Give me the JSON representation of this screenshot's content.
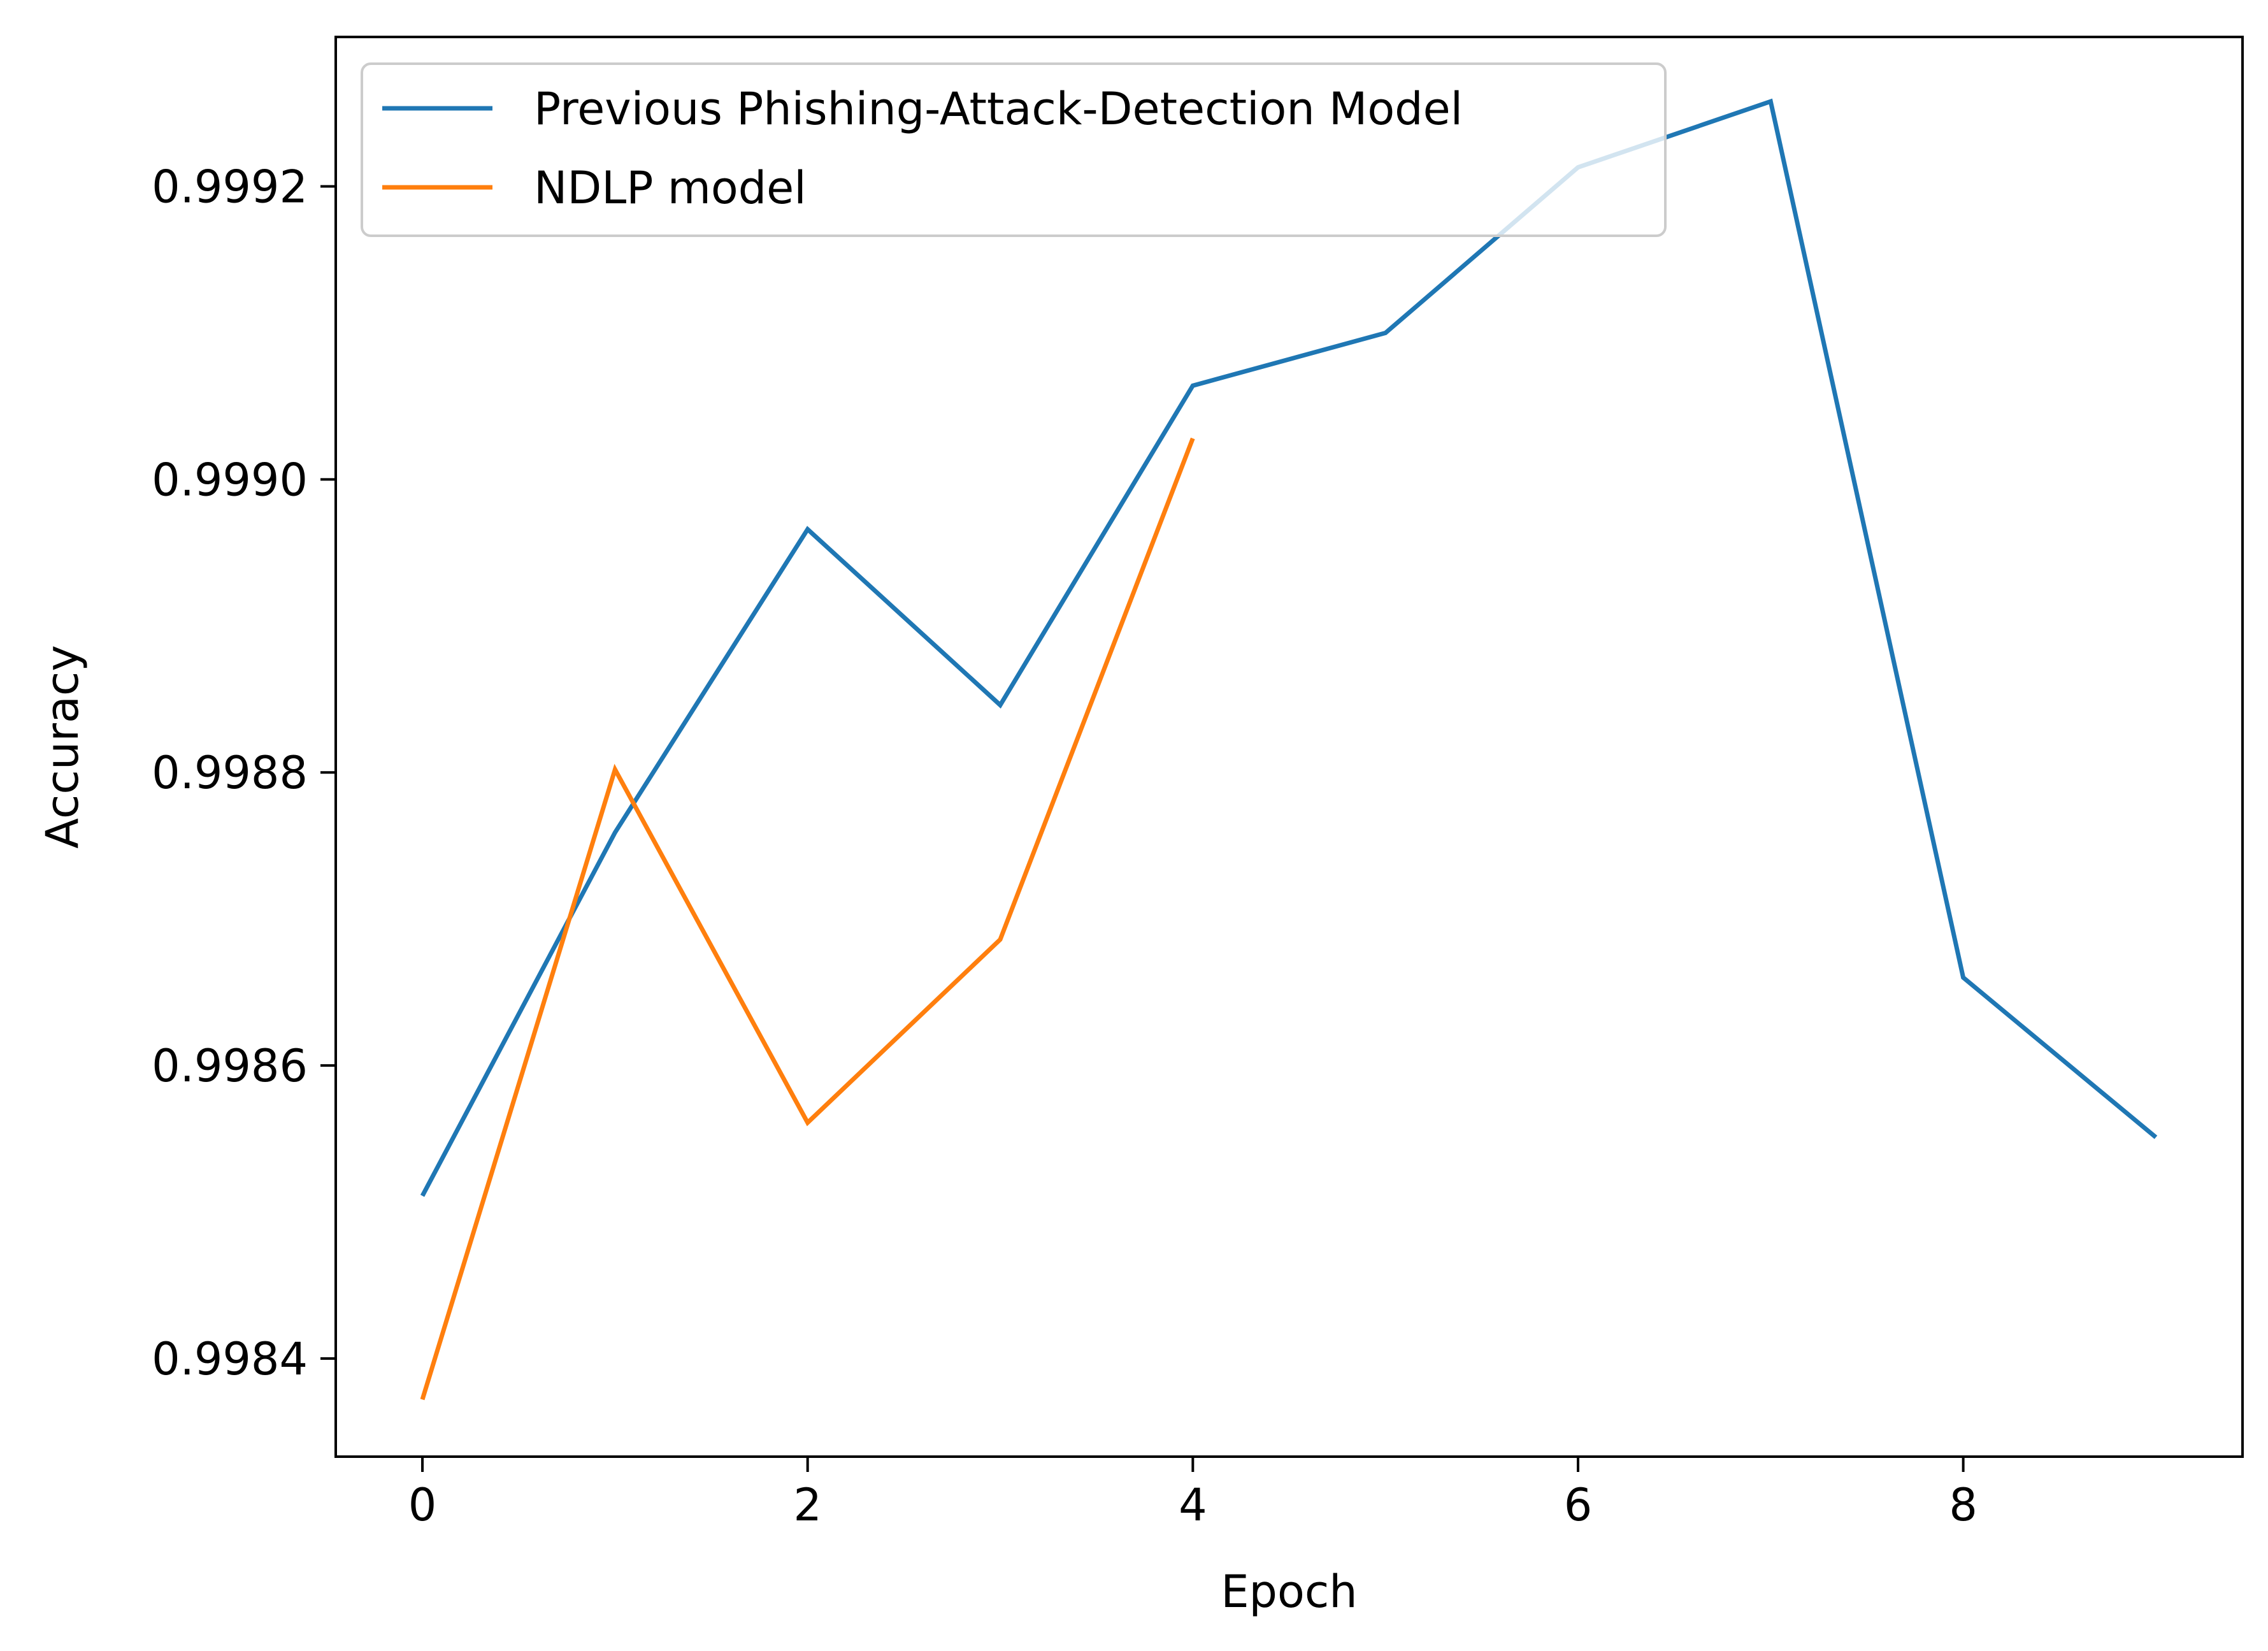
{
  "chart_data": {
    "type": "line",
    "title": "",
    "xlabel": "Epoch",
    "ylabel": "Accuracy",
    "xlim": [
      -0.45,
      9.45
    ],
    "ylim": [
      0.998333,
      0.999302
    ],
    "xticks": [
      0,
      2,
      4,
      6,
      8
    ],
    "xtick_labels": [
      "0",
      "2",
      "4",
      "6",
      "8"
    ],
    "yticks": [
      0.9984,
      0.9986,
      0.9988,
      0.999,
      0.9992
    ],
    "ytick_labels": [
      "0.9984",
      "0.9986",
      "0.9988",
      "0.9990",
      "0.9992"
    ],
    "grid": false,
    "legend_position": "upper-left",
    "series": [
      {
        "name": "Previous Phishing-Attack-Detection Model",
        "color": "#1f77b4",
        "x": [
          0,
          1,
          2,
          3,
          4,
          5,
          6,
          7,
          8,
          9
        ],
        "values": [
          0.998511,
          0.998759,
          0.998966,
          0.998846,
          0.999064,
          0.9991,
          0.999213,
          0.999258,
          0.99866,
          0.998551
        ]
      },
      {
        "name": "NDLP model",
        "color": "#ff7f0e",
        "x": [
          0,
          1,
          2,
          3,
          4
        ],
        "values": [
          0.998372,
          0.998802,
          0.998561,
          0.998686,
          0.999028
        ]
      }
    ]
  }
}
